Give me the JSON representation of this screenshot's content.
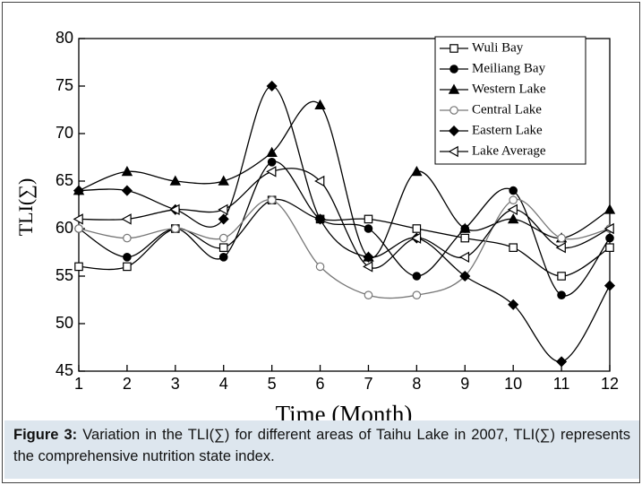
{
  "chart_data": {
    "type": "line",
    "x_label": "Time (Month)",
    "y_label": "TLI(∑)",
    "x": [
      1,
      2,
      3,
      4,
      5,
      6,
      7,
      8,
      9,
      10,
      11,
      12
    ],
    "xlim": [
      1,
      12
    ],
    "xticks": [
      1,
      2,
      3,
      4,
      5,
      6,
      7,
      8,
      9,
      10,
      11,
      12
    ],
    "ylim": [
      45,
      80
    ],
    "yticks": [
      45,
      50,
      55,
      60,
      65,
      70,
      75,
      80
    ],
    "smooth": true,
    "legend": "upper right",
    "series": [
      {
        "name": "Wuli Bay",
        "color": "#000000",
        "marker": "square",
        "filled": false,
        "values": [
          56,
          56,
          60,
          58,
          63,
          61,
          61,
          60,
          59,
          58,
          55,
          58
        ]
      },
      {
        "name": "Meiliang Bay",
        "color": "#000000",
        "marker": "circle",
        "filled": true,
        "values": [
          60,
          57,
          60,
          57,
          67,
          61,
          60,
          55,
          60,
          64,
          53,
          59
        ]
      },
      {
        "name": "Western Lake",
        "color": "#000000",
        "marker": "triangle",
        "filled": true,
        "values": [
          64,
          66,
          65,
          65,
          68,
          73,
          57,
          66,
          60,
          61,
          59,
          62
        ]
      },
      {
        "name": "Central Lake",
        "color": "#777777",
        "marker": "circle",
        "filled": false,
        "values": [
          60,
          59,
          60,
          59,
          63,
          56,
          53,
          53,
          55,
          63,
          59,
          60
        ]
      },
      {
        "name": "Eastern Lake",
        "color": "#000000",
        "marker": "diamond",
        "filled": true,
        "values": [
          64,
          64,
          62,
          61,
          75,
          61,
          57,
          59,
          55,
          52,
          46,
          54
        ]
      },
      {
        "name": "Lake Average",
        "color": "#000000",
        "marker": "left-triangle",
        "filled": false,
        "values": [
          61,
          61,
          62,
          62,
          66,
          65,
          56,
          59,
          57,
          62,
          58,
          60
        ]
      }
    ]
  },
  "caption": {
    "label": "Figure 3:",
    "text": "Variation in the TLI(∑) for different areas of Taihu Lake in 2007, TLI(∑) represents the comprehensive nutrition state index."
  }
}
